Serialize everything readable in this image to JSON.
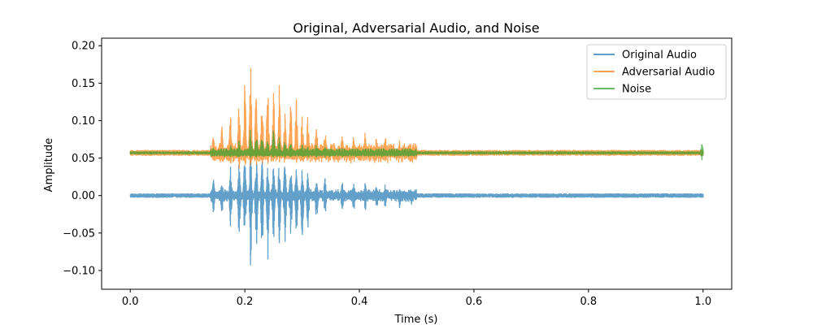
{
  "chart_data": {
    "type": "line",
    "title": "Original, Adversarial Audio, and Noise",
    "xlabel": "Time (s)",
    "ylabel": "Amplitude",
    "xlim": [
      -0.05,
      1.05
    ],
    "ylim": [
      -0.125,
      0.21
    ],
    "xticks": [
      0.0,
      0.2,
      0.4,
      0.6,
      0.8,
      1.0
    ],
    "xtick_labels": [
      "0.0",
      "0.2",
      "0.4",
      "0.6",
      "0.8",
      "1.0"
    ],
    "yticks": [
      -0.1,
      -0.05,
      0.0,
      0.05,
      0.1,
      0.15,
      0.2
    ],
    "ytick_labels": [
      "−0.10",
      "−0.05",
      "0.00",
      "0.05",
      "0.10",
      "0.15",
      "0.20"
    ],
    "grid": false,
    "legend_position": "top-right",
    "series": [
      {
        "name": "Original Audio",
        "color": "#1f77b4",
        "baseline": 0.0,
        "noise_amp": 0.003,
        "peaks": [
          [
            0.145,
            0.025,
            -0.025
          ],
          [
            0.16,
            0.028,
            -0.03
          ],
          [
            0.175,
            0.04,
            -0.05
          ],
          [
            0.19,
            0.05,
            -0.065
          ],
          [
            0.2,
            0.06,
            -0.085
          ],
          [
            0.21,
            0.065,
            -0.105
          ],
          [
            0.22,
            0.06,
            -0.08
          ],
          [
            0.23,
            0.058,
            -0.09
          ],
          [
            0.24,
            0.05,
            -0.095
          ],
          [
            0.25,
            0.045,
            -0.07
          ],
          [
            0.26,
            0.05,
            -0.08
          ],
          [
            0.27,
            0.05,
            -0.09
          ],
          [
            0.28,
            0.045,
            -0.075
          ],
          [
            0.29,
            0.045,
            -0.06
          ],
          [
            0.3,
            0.04,
            -0.07
          ],
          [
            0.31,
            0.035,
            -0.055
          ],
          [
            0.325,
            0.03,
            -0.04
          ],
          [
            0.34,
            0.025,
            -0.03
          ],
          [
            0.37,
            0.02,
            -0.025
          ],
          [
            0.39,
            0.02,
            -0.025
          ],
          [
            0.41,
            0.02,
            -0.025
          ],
          [
            0.43,
            0.02,
            -0.022
          ],
          [
            0.445,
            0.018,
            -0.02
          ],
          [
            0.47,
            0.015,
            -0.02
          ],
          [
            0.49,
            0.01,
            -0.015
          ]
        ]
      },
      {
        "name": "Adversarial Audio",
        "color": "#ff7f0e",
        "baseline": 0.057,
        "noise_amp": 0.004,
        "peaks": [
          [
            0.145,
            0.085,
            0.045
          ],
          [
            0.16,
            0.095,
            0.045
          ],
          [
            0.175,
            0.12,
            0.04
          ],
          [
            0.19,
            0.14,
            0.035
          ],
          [
            0.2,
            0.16,
            0.035
          ],
          [
            0.21,
            0.19,
            0.035
          ],
          [
            0.22,
            0.17,
            0.04
          ],
          [
            0.23,
            0.155,
            0.04
          ],
          [
            0.24,
            0.16,
            0.04
          ],
          [
            0.25,
            0.155,
            0.04
          ],
          [
            0.26,
            0.16,
            0.045
          ],
          [
            0.27,
            0.15,
            0.045
          ],
          [
            0.28,
            0.14,
            0.045
          ],
          [
            0.29,
            0.135,
            0.045
          ],
          [
            0.3,
            0.125,
            0.045
          ],
          [
            0.31,
            0.115,
            0.045
          ],
          [
            0.325,
            0.1,
            0.045
          ],
          [
            0.34,
            0.09,
            0.045
          ],
          [
            0.37,
            0.085,
            0.05
          ],
          [
            0.39,
            0.085,
            0.045
          ],
          [
            0.41,
            0.09,
            0.045
          ],
          [
            0.43,
            0.085,
            0.045
          ],
          [
            0.445,
            0.085,
            0.045
          ],
          [
            0.47,
            0.075,
            0.045
          ],
          [
            0.49,
            0.065,
            0.045
          ]
        ]
      },
      {
        "name": "Noise",
        "color": "#2ca02c",
        "baseline": 0.057,
        "noise_amp": 0.002,
        "peaks": [
          [
            0.145,
            0.065,
            0.052
          ],
          [
            0.175,
            0.07,
            0.05
          ],
          [
            0.19,
            0.075,
            0.05
          ],
          [
            0.21,
            0.092,
            0.05
          ],
          [
            0.22,
            0.09,
            0.05
          ],
          [
            0.23,
            0.085,
            0.05
          ],
          [
            0.24,
            0.08,
            0.05
          ],
          [
            0.25,
            0.09,
            0.05
          ],
          [
            0.26,
            0.08,
            0.05
          ],
          [
            0.27,
            0.075,
            0.05
          ],
          [
            0.28,
            0.075,
            0.05
          ],
          [
            0.3,
            0.07,
            0.05
          ],
          [
            0.31,
            0.07,
            0.05
          ],
          [
            0.325,
            0.07,
            0.05
          ],
          [
            0.34,
            0.066,
            0.05
          ],
          [
            0.37,
            0.064,
            0.05
          ],
          [
            0.41,
            0.062,
            0.052
          ],
          [
            0.47,
            0.062,
            0.052
          ],
          [
            0.998,
            0.072,
            0.047
          ]
        ]
      }
    ]
  }
}
